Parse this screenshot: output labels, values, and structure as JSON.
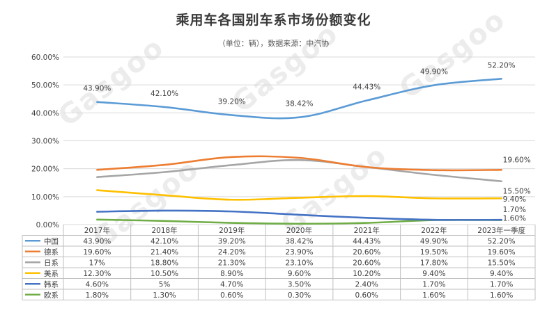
{
  "title": "乘用车各国别车系市场份额变化",
  "subtitle": "（单位：辆），数据来源：中汽协",
  "watermark": "Gasgoo",
  "colors": {
    "中国": "#5b9bd5",
    "德系": "#ed7d31",
    "日系": "#a5a5a5",
    "美系": "#ffc000",
    "韩系": "#4472c4",
    "欧系": "#70ad47",
    "grid": "#d9d9d9",
    "axis": "#bfbfbf"
  },
  "chart_data": {
    "type": "line",
    "title": "乘用车各国别车系市场份额变化",
    "categories": [
      "2017年",
      "2018年",
      "2019年",
      "2020年",
      "2021年",
      "2022年",
      "2023年一季度"
    ],
    "ylim": [
      0,
      60
    ],
    "yticks": [
      "0.00%",
      "10.00%",
      "20.00%",
      "30.00%",
      "40.00%",
      "50.00%",
      "60.00%"
    ],
    "grid": true,
    "legend": "data-table",
    "series": [
      {
        "name": "中国",
        "values": [
          43.9,
          42.1,
          39.2,
          38.42,
          44.43,
          49.9,
          52.2
        ],
        "table_labels": [
          "43.90%",
          "42.10%",
          "39.20%",
          "38.42%",
          "44.43%",
          "49.90%",
          "52.20%"
        ],
        "data_labels": [
          "43.90%",
          "42.10%",
          "39.20%",
          "38.42%",
          "44.43%",
          "49.90%",
          "52.20%"
        ]
      },
      {
        "name": "德系",
        "values": [
          19.6,
          21.4,
          24.2,
          23.9,
          20.6,
          19.5,
          19.6
        ],
        "table_labels": [
          "19.60%",
          "21.40%",
          "24.20%",
          "23.90%",
          "20.60%",
          "19.50%",
          "19.60%"
        ],
        "data_labels": [
          "",
          "",
          "",
          "",
          "",
          "",
          "19.60%"
        ]
      },
      {
        "name": "日系",
        "values": [
          17,
          18.8,
          21.3,
          23.1,
          20.6,
          17.8,
          15.5
        ],
        "table_labels": [
          "17%",
          "18.80%",
          "21.30%",
          "23.10%",
          "20.60%",
          "17.80%",
          "15.50%"
        ],
        "data_labels": [
          "",
          "",
          "",
          "",
          "",
          "",
          "15.50%"
        ]
      },
      {
        "name": "美系",
        "values": [
          12.3,
          10.5,
          8.9,
          9.6,
          10.2,
          9.4,
          9.4
        ],
        "table_labels": [
          "12.30%",
          "10.50%",
          "8.90%",
          "9.60%",
          "10.20%",
          "9.40%",
          "9.40%"
        ],
        "data_labels": [
          "",
          "",
          "",
          "",
          "",
          "",
          "9.40%"
        ]
      },
      {
        "name": "韩系",
        "values": [
          4.6,
          5,
          4.7,
          3.5,
          2.4,
          1.7,
          1.7
        ],
        "table_labels": [
          "4.60%",
          "5%",
          "4.70%",
          "3.50%",
          "2.40%",
          "1.70%",
          "1.70%"
        ],
        "data_labels": [
          "",
          "",
          "",
          "",
          "",
          "",
          "1.70%"
        ]
      },
      {
        "name": "欧系",
        "values": [
          1.8,
          1.3,
          0.6,
          0.3,
          0.6,
          1.6,
          1.6
        ],
        "table_labels": [
          "1.80%",
          "1.30%",
          "0.60%",
          "0.30%",
          "0.60%",
          "1.60%",
          "1.60%"
        ],
        "data_labels": [
          "",
          "",
          "",
          "",
          "",
          "",
          "1.60%"
        ]
      }
    ]
  }
}
